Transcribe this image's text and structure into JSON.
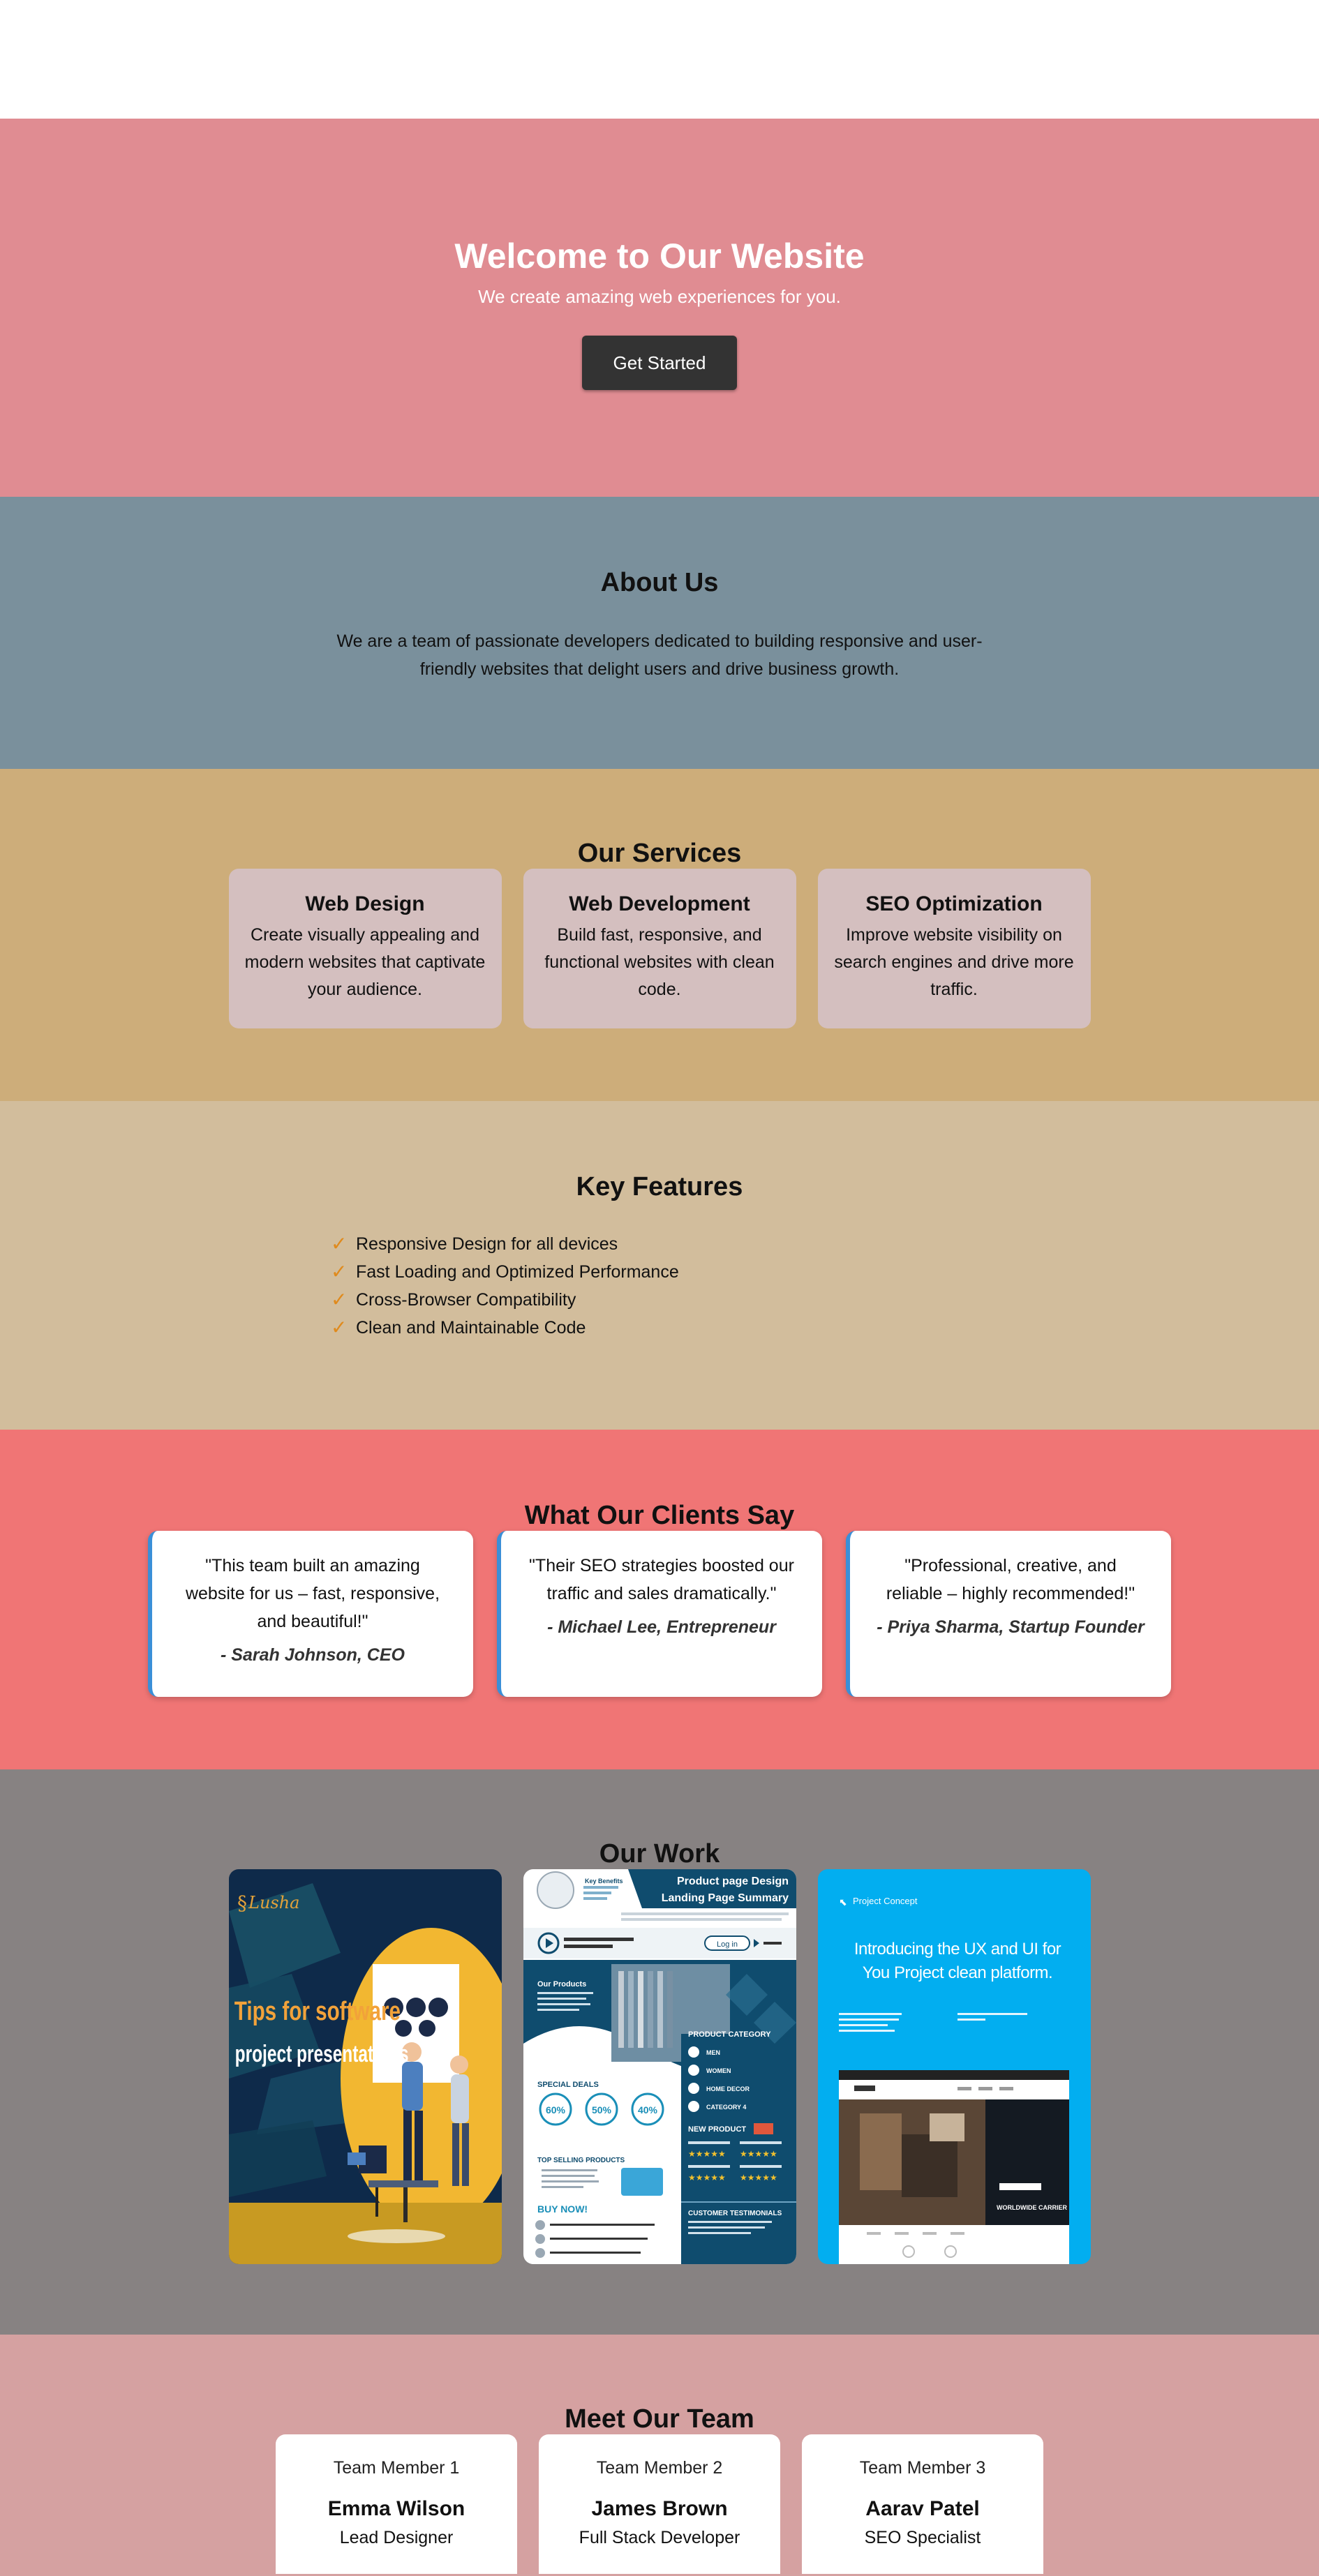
{
  "hero": {
    "title": "Welcome to Our Website",
    "subtitle": "We create amazing web experiences for you.",
    "cta_label": "Get Started"
  },
  "about": {
    "title": "About Us",
    "text": "We are a team of passionate developers dedicated to building responsive and user-friendly websites that delight users and drive business growth."
  },
  "services": {
    "title": "Our Services",
    "items": [
      {
        "title": "Web Design",
        "text": "Create visually appealing and modern websites that captivate your audience."
      },
      {
        "title": "Web Development",
        "text": "Build fast, responsive, and functional websites with clean code."
      },
      {
        "title": "SEO Optimization",
        "text": "Improve website visibility on search engines and drive more traffic."
      }
    ]
  },
  "features": {
    "title": "Key Features",
    "check_glyph": "✓",
    "items": [
      "Responsive Design for all devices",
      "Fast Loading and Optimized Performance",
      "Cross-Browser Compatibility",
      "Clean and Maintainable Code"
    ]
  },
  "testimonials": {
    "title": "What Our Clients Say",
    "items": [
      {
        "quote": "\"This team built an amazing website for us – fast, responsive, and beautiful!\"",
        "author": "- Sarah Johnson, CEO"
      },
      {
        "quote": "\"Their SEO strategies boosted our traffic and sales dramatically.\"",
        "author": "- Michael Lee, Entrepreneur"
      },
      {
        "quote": "\"Professional, creative, and reliable – highly recommended!\"",
        "author": "- Priya Sharma, Startup Founder"
      }
    ]
  },
  "work": {
    "title": "Our Work",
    "items": [
      {
        "brand": "Lusha",
        "line1": "Tips for software",
        "line2": "project presentations"
      },
      {
        "heading1": "Product page Design",
        "heading2": "Landing Page Summary",
        "key_benefits": "Key Benefits",
        "our_products": "Our Products",
        "product_category": "PRODUCT CATEGORY",
        "categories": [
          "MEN",
          "WOMEN",
          "HOME DECOR",
          "CATEGORY 4"
        ],
        "special_deals": "SPECIAL DEALS",
        "deals": [
          "60%",
          "50%",
          "40%"
        ],
        "new_product": "NEW PRODUCT",
        "top_selling": "TOP SELLING PRODUCTS",
        "buy_now": "BUY NOW!",
        "customer_testimonials": "CUSTOMER TESTIMONIALS",
        "login": "Log in"
      },
      {
        "brand": "Project Concept",
        "headline": "Introducing the UX and UI for You Project clean platform.",
        "promo_title": "WORLDWIDE CARRIER"
      }
    ]
  },
  "team": {
    "title": "Meet Our Team",
    "members": [
      {
        "alt": "Team Member 1",
        "name": "Emma Wilson",
        "role": "Lead Designer"
      },
      {
        "alt": "Team Member 2",
        "name": "James Brown",
        "role": "Full Stack Developer"
      },
      {
        "alt": "Team Member 3",
        "name": "Aarav Patel",
        "role": "SEO Specialist"
      }
    ]
  }
}
